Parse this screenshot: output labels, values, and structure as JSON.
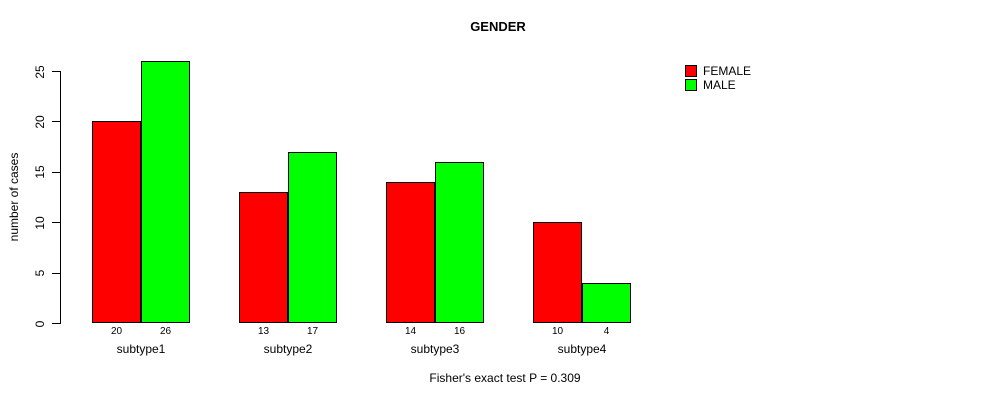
{
  "figure": {
    "background": "#ffffff"
  },
  "chart_data": {
    "type": "bar",
    "title": "GENDER",
    "xlabel": "",
    "ylabel": "number of cases",
    "categories": [
      "subtype1",
      "subtype2",
      "subtype3",
      "subtype4"
    ],
    "series": [
      {
        "name": "FEMALE",
        "color": "#ff0000",
        "values": [
          20,
          13,
          14,
          10
        ]
      },
      {
        "name": "MALE",
        "color": "#00ff00",
        "values": [
          26,
          17,
          16,
          4
        ]
      }
    ],
    "yticks": [
      0,
      5,
      10,
      15,
      20,
      25
    ],
    "ylim": [
      0,
      26
    ],
    "bar_value_labels": true,
    "grid": false,
    "legend_position": "top-right",
    "annotation": "Fisher's exact test P = 0.309"
  }
}
